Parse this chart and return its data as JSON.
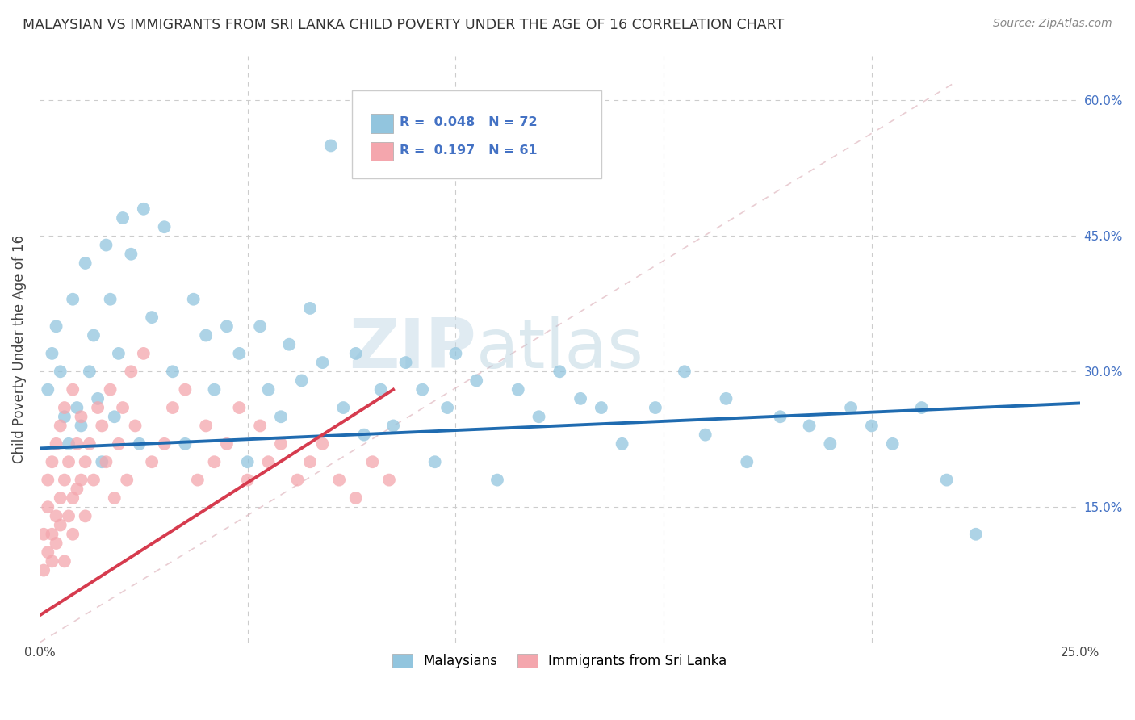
{
  "title": "MALAYSIAN VS IMMIGRANTS FROM SRI LANKA CHILD POVERTY UNDER THE AGE OF 16 CORRELATION CHART",
  "source": "Source: ZipAtlas.com",
  "ylabel": "Child Poverty Under the Age of 16",
  "xlim": [
    0.0,
    0.25
  ],
  "ylim": [
    0.0,
    0.65
  ],
  "malaysian_R": 0.048,
  "malaysian_N": 72,
  "srilanka_R": 0.197,
  "srilanka_N": 61,
  "blue_color": "#92c5de",
  "pink_color": "#f4a6ad",
  "blue_line_color": "#1f6bb0",
  "pink_line_color": "#d63b4e",
  "legend_blue_label": "Malaysians",
  "legend_pink_label": "Immigrants from Sri Lanka",
  "watermark_zip": "ZIP",
  "watermark_atlas": "atlas",
  "grid_color": "#cccccc",
  "ref_line_color": "#d0b0c0"
}
